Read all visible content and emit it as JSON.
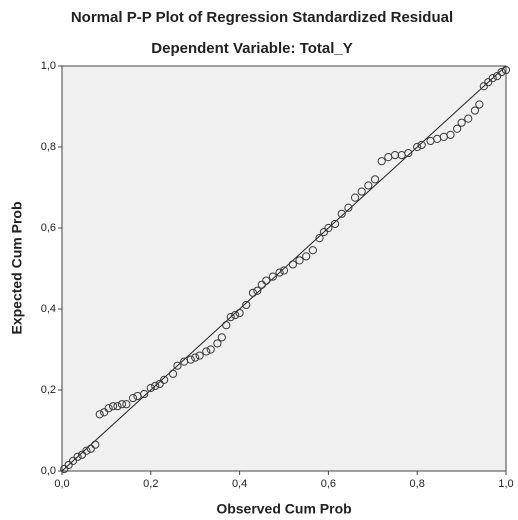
{
  "chart_data": {
    "type": "scatter",
    "title": "Normal P-P Plot of Regression Standardized Residual",
    "subtitle": "Dependent Variable: Total_Y",
    "x_label": "Observed Cum Prob",
    "y_label": "Expected Cum Prob",
    "color": "#3a3a3a",
    "xlim": [
      0,
      1
    ],
    "ylim": [
      0,
      1
    ],
    "xticks": [
      {
        "value": 0,
        "label": "0,0"
      },
      {
        "value": 0.2,
        "label": "0,2"
      },
      {
        "value": 0.4,
        "label": "0,4"
      },
      {
        "value": 0.6,
        "label": "0,6"
      },
      {
        "value": 0.8,
        "label": "0,8"
      },
      {
        "value": 1,
        "label": "1,0"
      }
    ],
    "yticks": [
      {
        "value": 0,
        "label": "0,0"
      },
      {
        "value": 0.2,
        "label": "0,2"
      },
      {
        "value": 0.4,
        "label": "0,4"
      },
      {
        "value": 0.6,
        "label": "0,6"
      },
      {
        "value": 0.8,
        "label": "0,8"
      },
      {
        "value": 1,
        "label": "1,0"
      }
    ],
    "x": [
      0.005,
      0.015,
      0.025,
      0.035,
      0.045,
      0.055,
      0.065,
      0.075,
      0.085,
      0.095,
      0.105,
      0.115,
      0.125,
      0.135,
      0.145,
      0.16,
      0.17,
      0.185,
      0.2,
      0.21,
      0.22,
      0.23,
      0.25,
      0.26,
      0.275,
      0.29,
      0.3,
      0.31,
      0.325,
      0.335,
      0.35,
      0.36,
      0.37,
      0.38,
      0.39,
      0.4,
      0.415,
      0.43,
      0.44,
      0.45,
      0.46,
      0.475,
      0.49,
      0.5,
      0.52,
      0.535,
      0.55,
      0.565,
      0.58,
      0.59,
      0.6,
      0.615,
      0.63,
      0.645,
      0.66,
      0.675,
      0.69,
      0.705,
      0.72,
      0.735,
      0.75,
      0.765,
      0.78,
      0.8,
      0.81,
      0.83,
      0.845,
      0.86,
      0.875,
      0.89,
      0.9,
      0.915,
      0.93,
      0.94,
      0.95,
      0.96,
      0.97,
      0.98,
      0.99,
      1.0
    ],
    "values": [
      0.005,
      0.015,
      0.025,
      0.035,
      0.04,
      0.05,
      0.055,
      0.065,
      0.14,
      0.145,
      0.155,
      0.16,
      0.16,
      0.165,
      0.165,
      0.18,
      0.185,
      0.19,
      0.205,
      0.21,
      0.215,
      0.225,
      0.24,
      0.26,
      0.27,
      0.275,
      0.28,
      0.285,
      0.295,
      0.3,
      0.315,
      0.33,
      0.36,
      0.38,
      0.385,
      0.39,
      0.41,
      0.44,
      0.445,
      0.46,
      0.47,
      0.48,
      0.49,
      0.495,
      0.51,
      0.52,
      0.53,
      0.545,
      0.575,
      0.59,
      0.6,
      0.61,
      0.635,
      0.65,
      0.675,
      0.69,
      0.705,
      0.72,
      0.765,
      0.775,
      0.78,
      0.78,
      0.785,
      0.8,
      0.805,
      0.815,
      0.82,
      0.825,
      0.83,
      0.845,
      0.86,
      0.87,
      0.89,
      0.905,
      0.95,
      0.96,
      0.97,
      0.975,
      0.985,
      0.99
    ]
  }
}
